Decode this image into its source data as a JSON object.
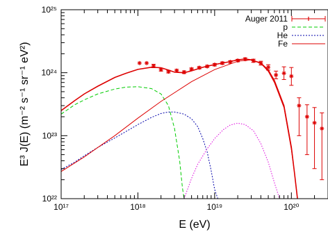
{
  "chart_data": {
    "type": "line",
    "title": "",
    "xlabel": "E (eV)",
    "ylabel": "E³ J(E) (m⁻² s⁻¹ sr⁻¹ eV²)",
    "xscale": "log",
    "yscale": "log",
    "xlim": [
      1e+17,
      3e+20
    ],
    "ylim": [
      1e+22,
      1e+25
    ],
    "grid": false,
    "legend_position": "top-right",
    "x_ticks": [
      {
        "value": 1e+17,
        "label": "10¹⁷"
      },
      {
        "value": 1e+18,
        "label": "10¹⁸"
      },
      {
        "value": 1e+19,
        "label": "10¹⁹"
      },
      {
        "value": 1e+20,
        "label": "10²⁰"
      }
    ],
    "y_ticks": [
      {
        "value": 1e+22,
        "label": "10²²"
      },
      {
        "value": 1e+23,
        "label": "10²³"
      },
      {
        "value": 1e+24,
        "label": "10²⁴"
      },
      {
        "value": 1e+25,
        "label": "10²⁵"
      }
    ],
    "series": [
      {
        "name": "Auger 2011",
        "kind": "data-with-errors",
        "color": "#dd0000",
        "x": [
          1.05e+18,
          1.3e+18,
          1.6e+18,
          2e+18,
          2.5e+18,
          3.2e+18,
          4e+18,
          5e+18,
          6.3e+18,
          8e+18,
          1e+19,
          1.26e+19,
          1.6e+19,
          2e+19,
          2.5e+19,
          3.2e+19,
          4e+19,
          5e+19,
          6.3e+19,
          8e+19,
          1e+20,
          1.26e+20,
          1.6e+20,
          2e+20,
          2.5e+20
        ],
        "y": [
          1.42e+24,
          1.42e+24,
          1.28e+24,
          1.12e+24,
          1.04e+24,
          1.08e+24,
          1.02e+24,
          1.14e+24,
          1.2e+24,
          1.26e+24,
          1.34e+24,
          1.42e+24,
          1.48e+24,
          1.56e+24,
          1.64e+24,
          1.55e+24,
          1.42e+24,
          1.22e+24,
          9.2e+23,
          9.8e+23,
          8.8e+23,
          3e+23,
          2e+23,
          1.6e+23,
          1.3e+23
        ],
        "err_low": [
          0,
          0,
          8e+22,
          6e+22,
          5e+22,
          5e+22,
          5e+22,
          5e+22,
          5e+22,
          5e+22,
          6e+22,
          6e+22,
          7e+22,
          7e+22,
          8e+22,
          9e+22,
          1e+23,
          1.2e+23,
          1.2e+23,
          2e+23,
          2.5e+23,
          2e+23,
          1.5e+23,
          1.3e+23,
          1.1e+23
        ],
        "err_high": [
          0,
          0,
          8e+22,
          6e+22,
          5e+22,
          5e+22,
          5e+22,
          5e+22,
          5e+22,
          5e+22,
          6e+22,
          6e+22,
          7e+22,
          7e+22,
          8e+22,
          9e+22,
          1e+23,
          1.2e+23,
          1.4e+23,
          2.6e+23,
          3.3e+23,
          1e+23,
          1.1e+23,
          1.2e+23,
          1e+23
        ]
      },
      {
        "name": "p",
        "kind": "line",
        "color": "#00cc00",
        "dash": "5,3",
        "x": [
          1e+17,
          1.5e+17,
          2e+17,
          3e+17,
          5e+17,
          7e+17,
          1e+18,
          1.5e+18,
          2e+18,
          2.5e+18,
          3e+18,
          3.5e+18,
          3.8e+18,
          4e+18
        ],
        "y": [
          2.2e+23,
          3.1e+23,
          3.7e+23,
          4.6e+23,
          5.5e+23,
          5.9e+23,
          6e+23,
          5.6e+23,
          4.6e+23,
          3e+23,
          1.3e+23,
          4e+22,
          1.5e+22,
          1e+22
        ]
      },
      {
        "name": "He",
        "kind": "line",
        "color": "#0000aa",
        "dash": "2,2",
        "x": [
          1e+17,
          1.5e+17,
          2e+17,
          3e+17,
          5e+17,
          1e+18,
          1.5e+18,
          2e+18,
          2.5e+18,
          3e+18,
          4e+18,
          5e+18,
          6e+18,
          7e+18,
          8e+18,
          9e+18,
          1e+19,
          1.1e+19
        ],
        "y": [
          2.9e+22,
          3.8e+22,
          4.8e+22,
          6.5e+22,
          9.2e+22,
          1.5e+23,
          1.95e+23,
          2.25e+23,
          2.38e+23,
          2.38e+23,
          2.2e+23,
          1.85e+23,
          1.4e+23,
          9e+22,
          5.5e+22,
          2.8e+22,
          1.4e+22,
          1e+22
        ]
      },
      {
        "name": "",
        "kind": "line",
        "color": "#dd00dd",
        "dash": "1.5,2",
        "x": [
          4e+18,
          5e+18,
          6e+18,
          8e+18,
          1e+19,
          1.3e+19,
          1.6e+19,
          2e+19,
          2.5e+19,
          3.2e+19,
          4e+19,
          5e+19,
          6e+19,
          7e+19
        ],
        "y": [
          1e+22,
          2.1e+22,
          3.5e+22,
          6.2e+22,
          9e+22,
          1.25e+23,
          1.48e+23,
          1.58e+23,
          1.5e+23,
          1.2e+23,
          7.5e+22,
          3.8e+22,
          1.8e+22,
          1e+22
        ]
      },
      {
        "name": "Fe",
        "kind": "line",
        "color": "#dd0000",
        "dash": "",
        "x": [
          1e+17,
          2e+17,
          5e+17,
          1e+18,
          2e+18,
          5e+18,
          1e+19,
          2e+19,
          3e+19,
          4e+19,
          5e+19,
          6e+19,
          8e+19,
          1e+20,
          1.1e+20,
          1.2e+20
        ],
        "y": [
          2.7e+22,
          4.6e+22,
          1e+23,
          1.9e+23,
          3.5e+23,
          7.2e+23,
          1.12e+24,
          1.52e+24,
          1.6e+24,
          1.4e+24,
          1.05e+24,
          7e+23,
          2.8e+23,
          6e+22,
          2.5e+22,
          1e+22
        ]
      },
      {
        "name": "",
        "kind": "line",
        "color": "#dd0000",
        "dash": "",
        "width": 1.6,
        "x": [
          1e+17,
          1.5e+17,
          2e+17,
          3e+17,
          5e+17,
          7e+17,
          1e+18,
          1.5e+18,
          2e+18,
          2.5e+18,
          3e+18,
          4e+18,
          5e+18,
          7e+18,
          1e+19,
          1.5e+19,
          2e+19,
          2.5e+19,
          3e+19,
          4e+19,
          5e+19,
          6e+19,
          8e+19,
          1e+20,
          1.1e+20,
          1.2e+20
        ],
        "y": [
          2.5e+23,
          3.6e+23,
          4.6e+23,
          6.1e+23,
          8.4e+23,
          9.8e+23,
          1.13e+24,
          1.22e+24,
          1.2e+24,
          1.1e+24,
          1.02e+24,
          1e+24,
          1.07e+24,
          1.22e+24,
          1.35e+24,
          1.48e+24,
          1.6e+24,
          1.65e+24,
          1.6e+24,
          1.42e+24,
          1.1e+24,
          7.5e+23,
          3e+23,
          6.5e+22,
          2.5e+22,
          1e+22
        ]
      }
    ]
  }
}
